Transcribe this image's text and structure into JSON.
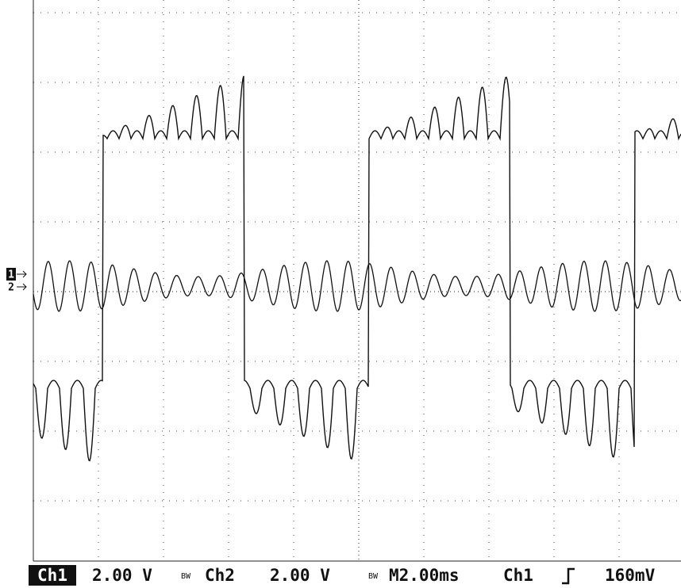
{
  "status_bar": {
    "ch1_label": "Ch1",
    "ch1_scale": "2.00 V",
    "ch1_bw": "BW",
    "ch2_label": "Ch2",
    "ch2_scale": "2.00 V",
    "ch2_bw": "BW",
    "timebase": "M2.00ms",
    "trigger_source": "Ch1",
    "trigger_level": "160mV"
  },
  "markers": {
    "ch1": "1",
    "ch2": "2"
  }
}
